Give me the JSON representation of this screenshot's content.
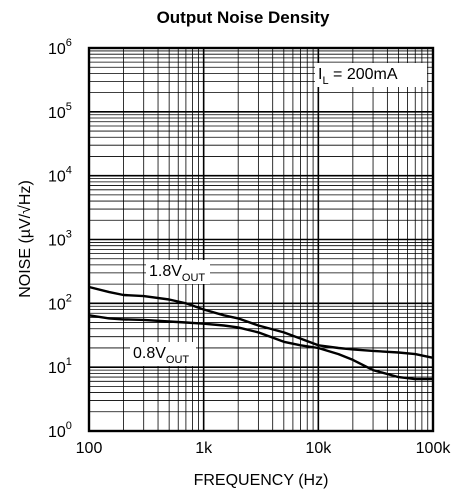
{
  "chart_data": {
    "type": "line",
    "title": "Output Noise Density",
    "xlabel": "FREQUENCY (Hz)",
    "ylabel": "NOISE (µV/√Hz)",
    "x_scale": "log",
    "y_scale": "log",
    "xlim": [
      100,
      100000
    ],
    "ylim": [
      1,
      1000000
    ],
    "grid": true,
    "x_ticks": [
      {
        "value": 100,
        "label": "100"
      },
      {
        "value": 1000,
        "label": "1k"
      },
      {
        "value": 10000,
        "label": "10k"
      },
      {
        "value": 100000,
        "label": "100k"
      }
    ],
    "y_ticks": [
      {
        "value": 1,
        "base": "10",
        "exp": "0"
      },
      {
        "value": 10,
        "base": "10",
        "exp": "1"
      },
      {
        "value": 100,
        "base": "10",
        "exp": "2"
      },
      {
        "value": 1000,
        "base": "10",
        "exp": "3"
      },
      {
        "value": 10000,
        "base": "10",
        "exp": "4"
      },
      {
        "value": 100000,
        "base": "10",
        "exp": "5"
      },
      {
        "value": 1000000,
        "base": "10",
        "exp": "6"
      }
    ],
    "annotation": {
      "main": "I",
      "sub": "L",
      "rest": " = 200mA"
    },
    "series": [
      {
        "name_main": "1.8V",
        "name_sub": "OUT",
        "x": [
          100,
          150,
          200,
          300,
          500,
          700,
          1000,
          1500,
          2000,
          3000,
          5000,
          7000,
          10000,
          15000,
          20000,
          30000,
          50000,
          70000,
          100000
        ],
        "y": [
          180,
          150,
          135,
          130,
          115,
          100,
          80,
          65,
          58,
          45,
          35,
          28,
          22,
          20,
          19,
          18,
          17,
          16,
          14
        ]
      },
      {
        "name_main": "0.8V",
        "name_sub": "OUT",
        "x": [
          100,
          150,
          200,
          300,
          500,
          700,
          1000,
          1500,
          2000,
          3000,
          5000,
          7000,
          10000,
          15000,
          20000,
          30000,
          50000,
          70000,
          100000
        ],
        "y": [
          65,
          58,
          56,
          55,
          52,
          50,
          48,
          45,
          42,
          35,
          25,
          22,
          20,
          16,
          13,
          9,
          7,
          6.5,
          6.5
        ]
      }
    ]
  }
}
